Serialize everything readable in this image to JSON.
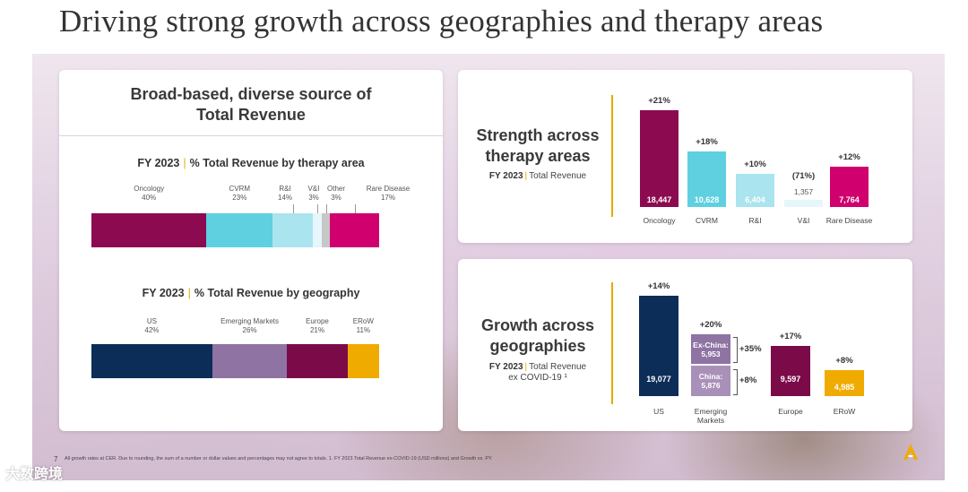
{
  "page": {
    "title": "Driving strong growth across geographies and therapy areas",
    "footnote": "All growth rates at CER. Due to rounding, the sum of a number or dollar values and percentages may not agree to totals. 1. FY 2023 Total Revenue ex-COVID-19 (USD millions) and Growth vs. PY.",
    "page_number": "7",
    "watermark": "大数跨境"
  },
  "left_panel": {
    "heading_line1": "Broad-based, diverse source of",
    "heading_line2": "Total Revenue",
    "therapy_title_a": "FY 2023",
    "therapy_title_sep": "|",
    "therapy_title_b": "% Total Revenue by therapy area",
    "geo_title_a": "FY 2023",
    "geo_title_sep": "|",
    "geo_title_b": "% Total Revenue by geography"
  },
  "top_right": {
    "heading_line1": "Strength across",
    "heading_line2": "therapy areas",
    "sub_a": "FY 2023",
    "sub_sep": "|",
    "sub_b": "Total Revenue"
  },
  "bottom_right": {
    "heading_line1": "Growth across",
    "heading_line2": "geographies",
    "sub_a": "FY 2023",
    "sub_sep": "|",
    "sub_b": "Total Revenue",
    "sub_line2": "ex COVID-19 ¹"
  },
  "colors": {
    "oncology": "#8b0a50",
    "cvrm": "#5fd0e0",
    "ri": "#a9e4ef",
    "vi": "#e6f6fa",
    "other": "#c7c7c7",
    "rare": "#d0006f",
    "us": "#0c2d57",
    "em": "#8e73a3",
    "europe": "#7a0b48",
    "erow": "#f0ab00"
  },
  "chart_data": [
    {
      "type": "bar",
      "orientation": "horizontal-stacked",
      "title": "FY 2023 | % Total Revenue by therapy area",
      "segments": [
        {
          "name": "Oncology",
          "label": "40%",
          "value": 40,
          "color_key": "oncology"
        },
        {
          "name": "CVRM",
          "label": "23%",
          "value": 23,
          "color_key": "cvrm"
        },
        {
          "name": "R&I",
          "label": "14%",
          "value": 14,
          "color_key": "ri"
        },
        {
          "name": "V&I",
          "label": "3%",
          "value": 3,
          "color_key": "vi"
        },
        {
          "name": "Other",
          "label": "3%",
          "value": 3,
          "color_key": "other"
        },
        {
          "name": "Rare Disease",
          "label": "17%",
          "value": 17,
          "color_key": "rare"
        }
      ]
    },
    {
      "type": "bar",
      "orientation": "horizontal-stacked",
      "title": "FY 2023 | % Total Revenue by geography",
      "segments": [
        {
          "name": "US",
          "label": "42%",
          "value": 42,
          "color_key": "us"
        },
        {
          "name": "Emerging Markets",
          "label": "26%",
          "value": 26,
          "color_key": "em"
        },
        {
          "name": "Europe",
          "label": "21%",
          "value": 21,
          "color_key": "europe"
        },
        {
          "name": "ERoW",
          "label": "11%",
          "value": 11,
          "color_key": "erow"
        }
      ]
    },
    {
      "type": "bar",
      "title": "Strength across therapy areas",
      "ylim": [
        0,
        18447
      ],
      "categories": [
        "Oncology",
        "CVRM",
        "R&I",
        "V&I",
        "Rare Disease"
      ],
      "values": [
        18447,
        10628,
        6404,
        1357,
        7764
      ],
      "value_labels": [
        "18,447",
        "10,628",
        "6,404",
        "1,357",
        "7,764"
      ],
      "growth": [
        "+21%",
        "+18%",
        "+10%",
        "(71%)",
        "+12%"
      ],
      "color_keys": [
        "oncology",
        "cvrm",
        "ri",
        "vi",
        "rare"
      ]
    },
    {
      "type": "bar",
      "title": "Growth across geographies",
      "ylim": [
        0,
        19077
      ],
      "categories": [
        "US",
        "Emerging Markets",
        "Europe",
        "ERoW"
      ],
      "values": [
        19077,
        11829,
        9597,
        4985
      ],
      "value_labels": [
        "19,077",
        "",
        "9,597",
        "4,985"
      ],
      "growth": [
        "+14%",
        "+20%",
        "+17%",
        "+8%"
      ],
      "color_keys": [
        "us",
        "em",
        "europe",
        "erow"
      ],
      "em_breakdown": [
        {
          "name": "Ex-China:",
          "label": "5,953",
          "value": 5953,
          "growth": "+35%"
        },
        {
          "name": "China:",
          "label": "5,876",
          "value": 5876,
          "growth": "+8%"
        }
      ]
    }
  ]
}
